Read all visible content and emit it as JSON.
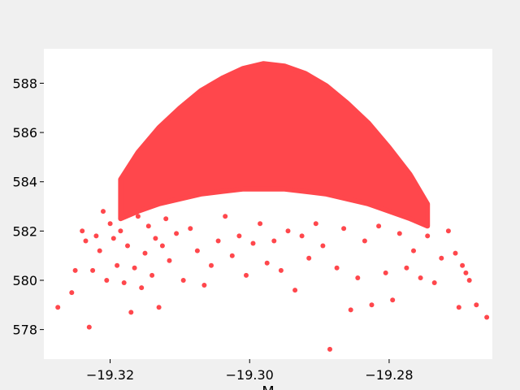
{
  "chart_data": {
    "type": "scatter",
    "xlabel": "M",
    "ylabel": "",
    "title": "",
    "xlim": [
      -19.3295,
      -19.2652
    ],
    "ylim": [
      576.8,
      589.4
    ],
    "xticks": [
      -19.32,
      -19.3,
      -19.28
    ],
    "xtick_labels": [
      "−19.32",
      "−19.30",
      "−19.28"
    ],
    "yticks": [
      578,
      580,
      582,
      584,
      586,
      588
    ],
    "ytick_labels": [
      "578",
      "580",
      "582",
      "584",
      "586",
      "588"
    ],
    "grid": false,
    "legend": "none",
    "series": [
      {
        "color": "#ff474c",
        "dense_envelope": {
          "x": [
            -19.3185,
            -19.316,
            -19.313,
            -19.31,
            -19.307,
            -19.304,
            -19.301,
            -19.298,
            -19.295,
            -19.292,
            -19.289,
            -19.286,
            -19.283,
            -19.28,
            -19.277,
            -19.2745
          ],
          "y_top": [
            584.1,
            585.2,
            586.2,
            587.0,
            587.7,
            588.2,
            588.6,
            588.8,
            588.7,
            588.4,
            587.9,
            587.2,
            586.4,
            585.4,
            584.3,
            583.1
          ],
          "y_bottom": [
            582.5,
            582.8,
            583.1,
            583.3,
            583.5,
            583.6,
            583.7,
            583.7,
            583.7,
            583.6,
            583.5,
            583.3,
            583.1,
            582.8,
            582.5,
            582.2
          ]
        },
        "points": [
          {
            "x": -19.3275,
            "y": 578.9
          },
          {
            "x": -19.3255,
            "y": 579.5
          },
          {
            "x": -19.325,
            "y": 580.4
          },
          {
            "x": -19.324,
            "y": 582.0
          },
          {
            "x": -19.3235,
            "y": 581.6
          },
          {
            "x": -19.323,
            "y": 578.1
          },
          {
            "x": -19.3225,
            "y": 580.4
          },
          {
            "x": -19.322,
            "y": 581.8
          },
          {
            "x": -19.3215,
            "y": 581.2
          },
          {
            "x": -19.321,
            "y": 582.8
          },
          {
            "x": -19.3205,
            "y": 580.0
          },
          {
            "x": -19.32,
            "y": 582.3
          },
          {
            "x": -19.3195,
            "y": 581.7
          },
          {
            "x": -19.319,
            "y": 580.6
          },
          {
            "x": -19.3185,
            "y": 582.0
          },
          {
            "x": -19.318,
            "y": 579.9
          },
          {
            "x": -19.3175,
            "y": 581.4
          },
          {
            "x": -19.317,
            "y": 578.7
          },
          {
            "x": -19.3165,
            "y": 580.5
          },
          {
            "x": -19.316,
            "y": 582.6
          },
          {
            "x": -19.3155,
            "y": 579.7
          },
          {
            "x": -19.315,
            "y": 581.1
          },
          {
            "x": -19.3145,
            "y": 582.2
          },
          {
            "x": -19.314,
            "y": 580.2
          },
          {
            "x": -19.3135,
            "y": 581.7
          },
          {
            "x": -19.313,
            "y": 578.9
          },
          {
            "x": -19.3125,
            "y": 581.4
          },
          {
            "x": -19.312,
            "y": 582.5
          },
          {
            "x": -19.3115,
            "y": 580.8
          },
          {
            "x": -19.3105,
            "y": 581.9
          },
          {
            "x": -19.3095,
            "y": 580.0
          },
          {
            "x": -19.3085,
            "y": 582.1
          },
          {
            "x": -19.3075,
            "y": 581.2
          },
          {
            "x": -19.3065,
            "y": 579.8
          },
          {
            "x": -19.3055,
            "y": 580.6
          },
          {
            "x": -19.3045,
            "y": 581.6
          },
          {
            "x": -19.3035,
            "y": 582.6
          },
          {
            "x": -19.3025,
            "y": 581.0
          },
          {
            "x": -19.3015,
            "y": 581.8
          },
          {
            "x": -19.3005,
            "y": 580.2
          },
          {
            "x": -19.2995,
            "y": 581.5
          },
          {
            "x": -19.2985,
            "y": 582.3
          },
          {
            "x": -19.2975,
            "y": 580.7
          },
          {
            "x": -19.2965,
            "y": 581.6
          },
          {
            "x": -19.2955,
            "y": 580.4
          },
          {
            "x": -19.2945,
            "y": 582.0
          },
          {
            "x": -19.2935,
            "y": 579.6
          },
          {
            "x": -19.2925,
            "y": 581.8
          },
          {
            "x": -19.2915,
            "y": 580.9
          },
          {
            "x": -19.2905,
            "y": 582.3
          },
          {
            "x": -19.2895,
            "y": 581.4
          },
          {
            "x": -19.2885,
            "y": 577.2
          },
          {
            "x": -19.2875,
            "y": 580.5
          },
          {
            "x": -19.2865,
            "y": 582.1
          },
          {
            "x": -19.2855,
            "y": 578.8
          },
          {
            "x": -19.2845,
            "y": 580.1
          },
          {
            "x": -19.2835,
            "y": 581.6
          },
          {
            "x": -19.2825,
            "y": 579.0
          },
          {
            "x": -19.2815,
            "y": 582.2
          },
          {
            "x": -19.2805,
            "y": 580.3
          },
          {
            "x": -19.2795,
            "y": 579.2
          },
          {
            "x": -19.2785,
            "y": 581.9
          },
          {
            "x": -19.2775,
            "y": 580.5
          },
          {
            "x": -19.2765,
            "y": 581.2
          },
          {
            "x": -19.2755,
            "y": 580.1
          },
          {
            "x": -19.2745,
            "y": 581.8
          },
          {
            "x": -19.2735,
            "y": 579.9
          },
          {
            "x": -19.2725,
            "y": 580.9
          },
          {
            "x": -19.2715,
            "y": 582.0
          },
          {
            "x": -19.2705,
            "y": 581.1
          },
          {
            "x": -19.27,
            "y": 578.9
          },
          {
            "x": -19.2695,
            "y": 580.6
          },
          {
            "x": -19.269,
            "y": 580.3
          },
          {
            "x": -19.2685,
            "y": 580.0
          },
          {
            "x": -19.2675,
            "y": 579.0
          },
          {
            "x": -19.266,
            "y": 578.5
          }
        ]
      }
    ]
  }
}
